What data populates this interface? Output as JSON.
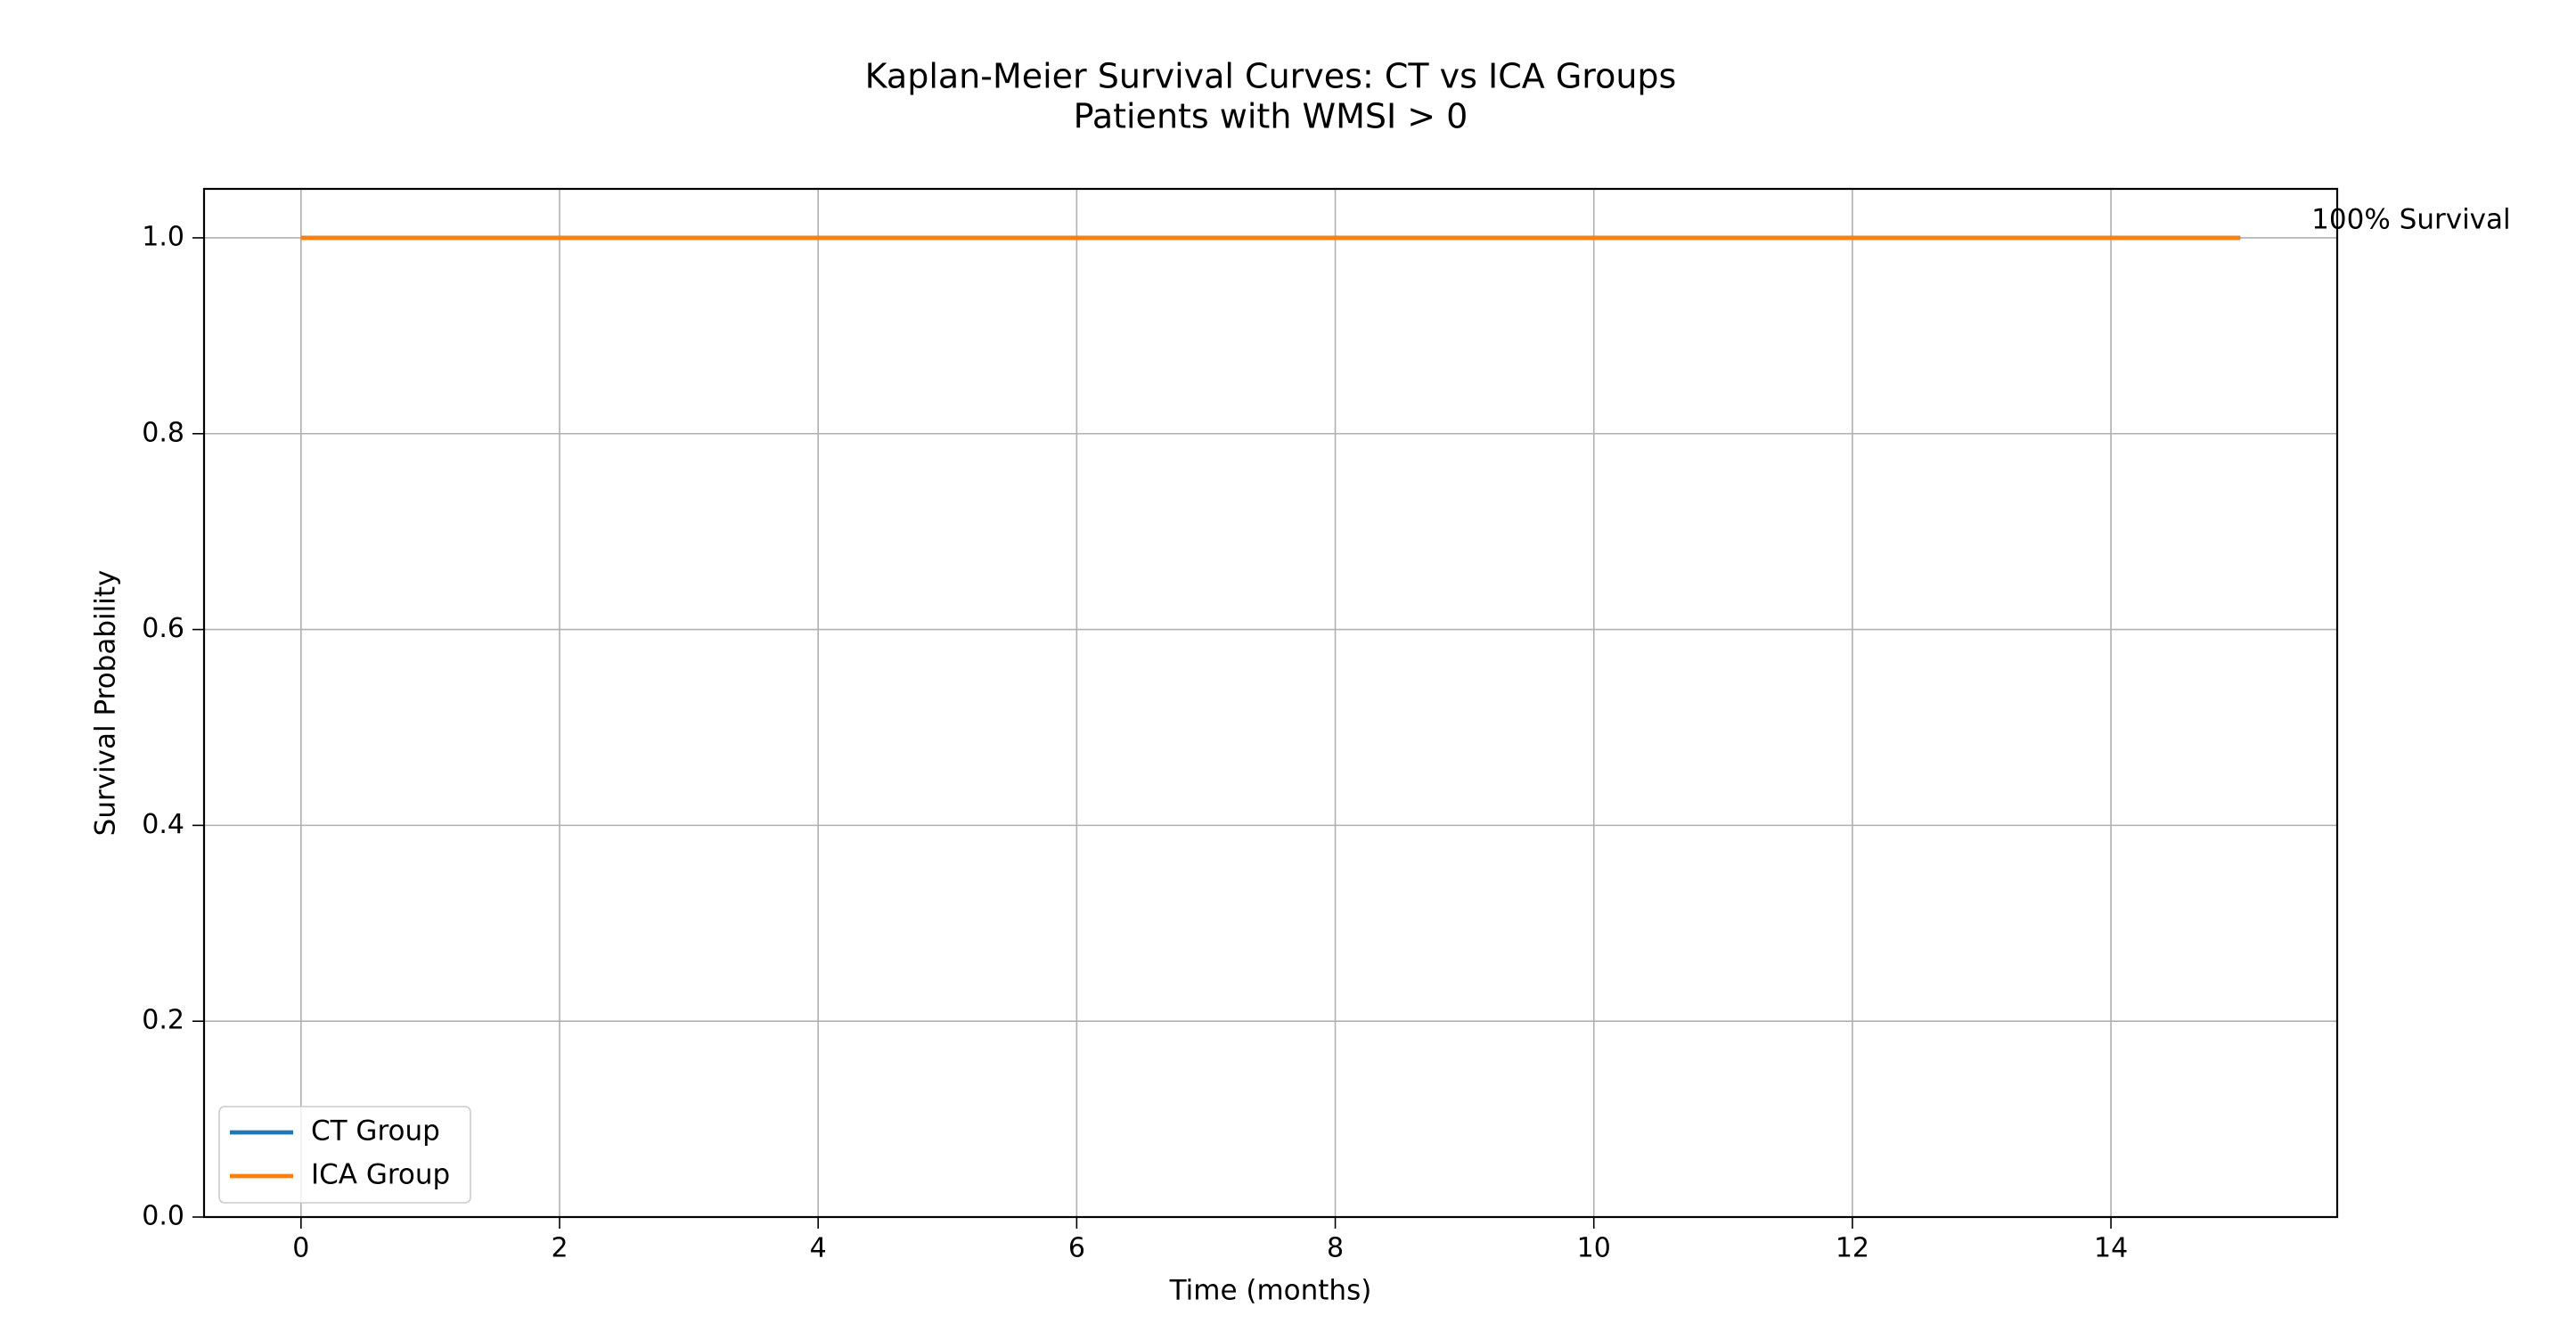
{
  "chart_data": {
    "type": "line",
    "title": "Kaplan-Meier Survival Curves: CT vs ICA Groups",
    "subtitle": "Patients with WMSI > 0",
    "x_label": "Time (months)",
    "y_label": "Survival Probability",
    "annotation": "100% Survival",
    "x": [
      0,
      15
    ],
    "series": [
      {
        "name": "CT Group",
        "color": "#1f77b4",
        "values": [
          1.0,
          1.0
        ]
      },
      {
        "name": "ICA Group",
        "color": "#ff7f0e",
        "values": [
          1.0,
          1.0
        ]
      }
    ],
    "xlim": [
      -0.75,
      15.75
    ],
    "xticks": [
      0,
      2,
      4,
      6,
      8,
      10,
      12,
      14
    ],
    "ylim": [
      0,
      1.05
    ],
    "yticks": [
      {
        "value": 0,
        "label": "0.0"
      },
      0.2,
      0.4,
      0.6,
      0.8,
      {
        "value": 1,
        "label": "1.0"
      }
    ],
    "grid": true,
    "legend": "lower left"
  }
}
